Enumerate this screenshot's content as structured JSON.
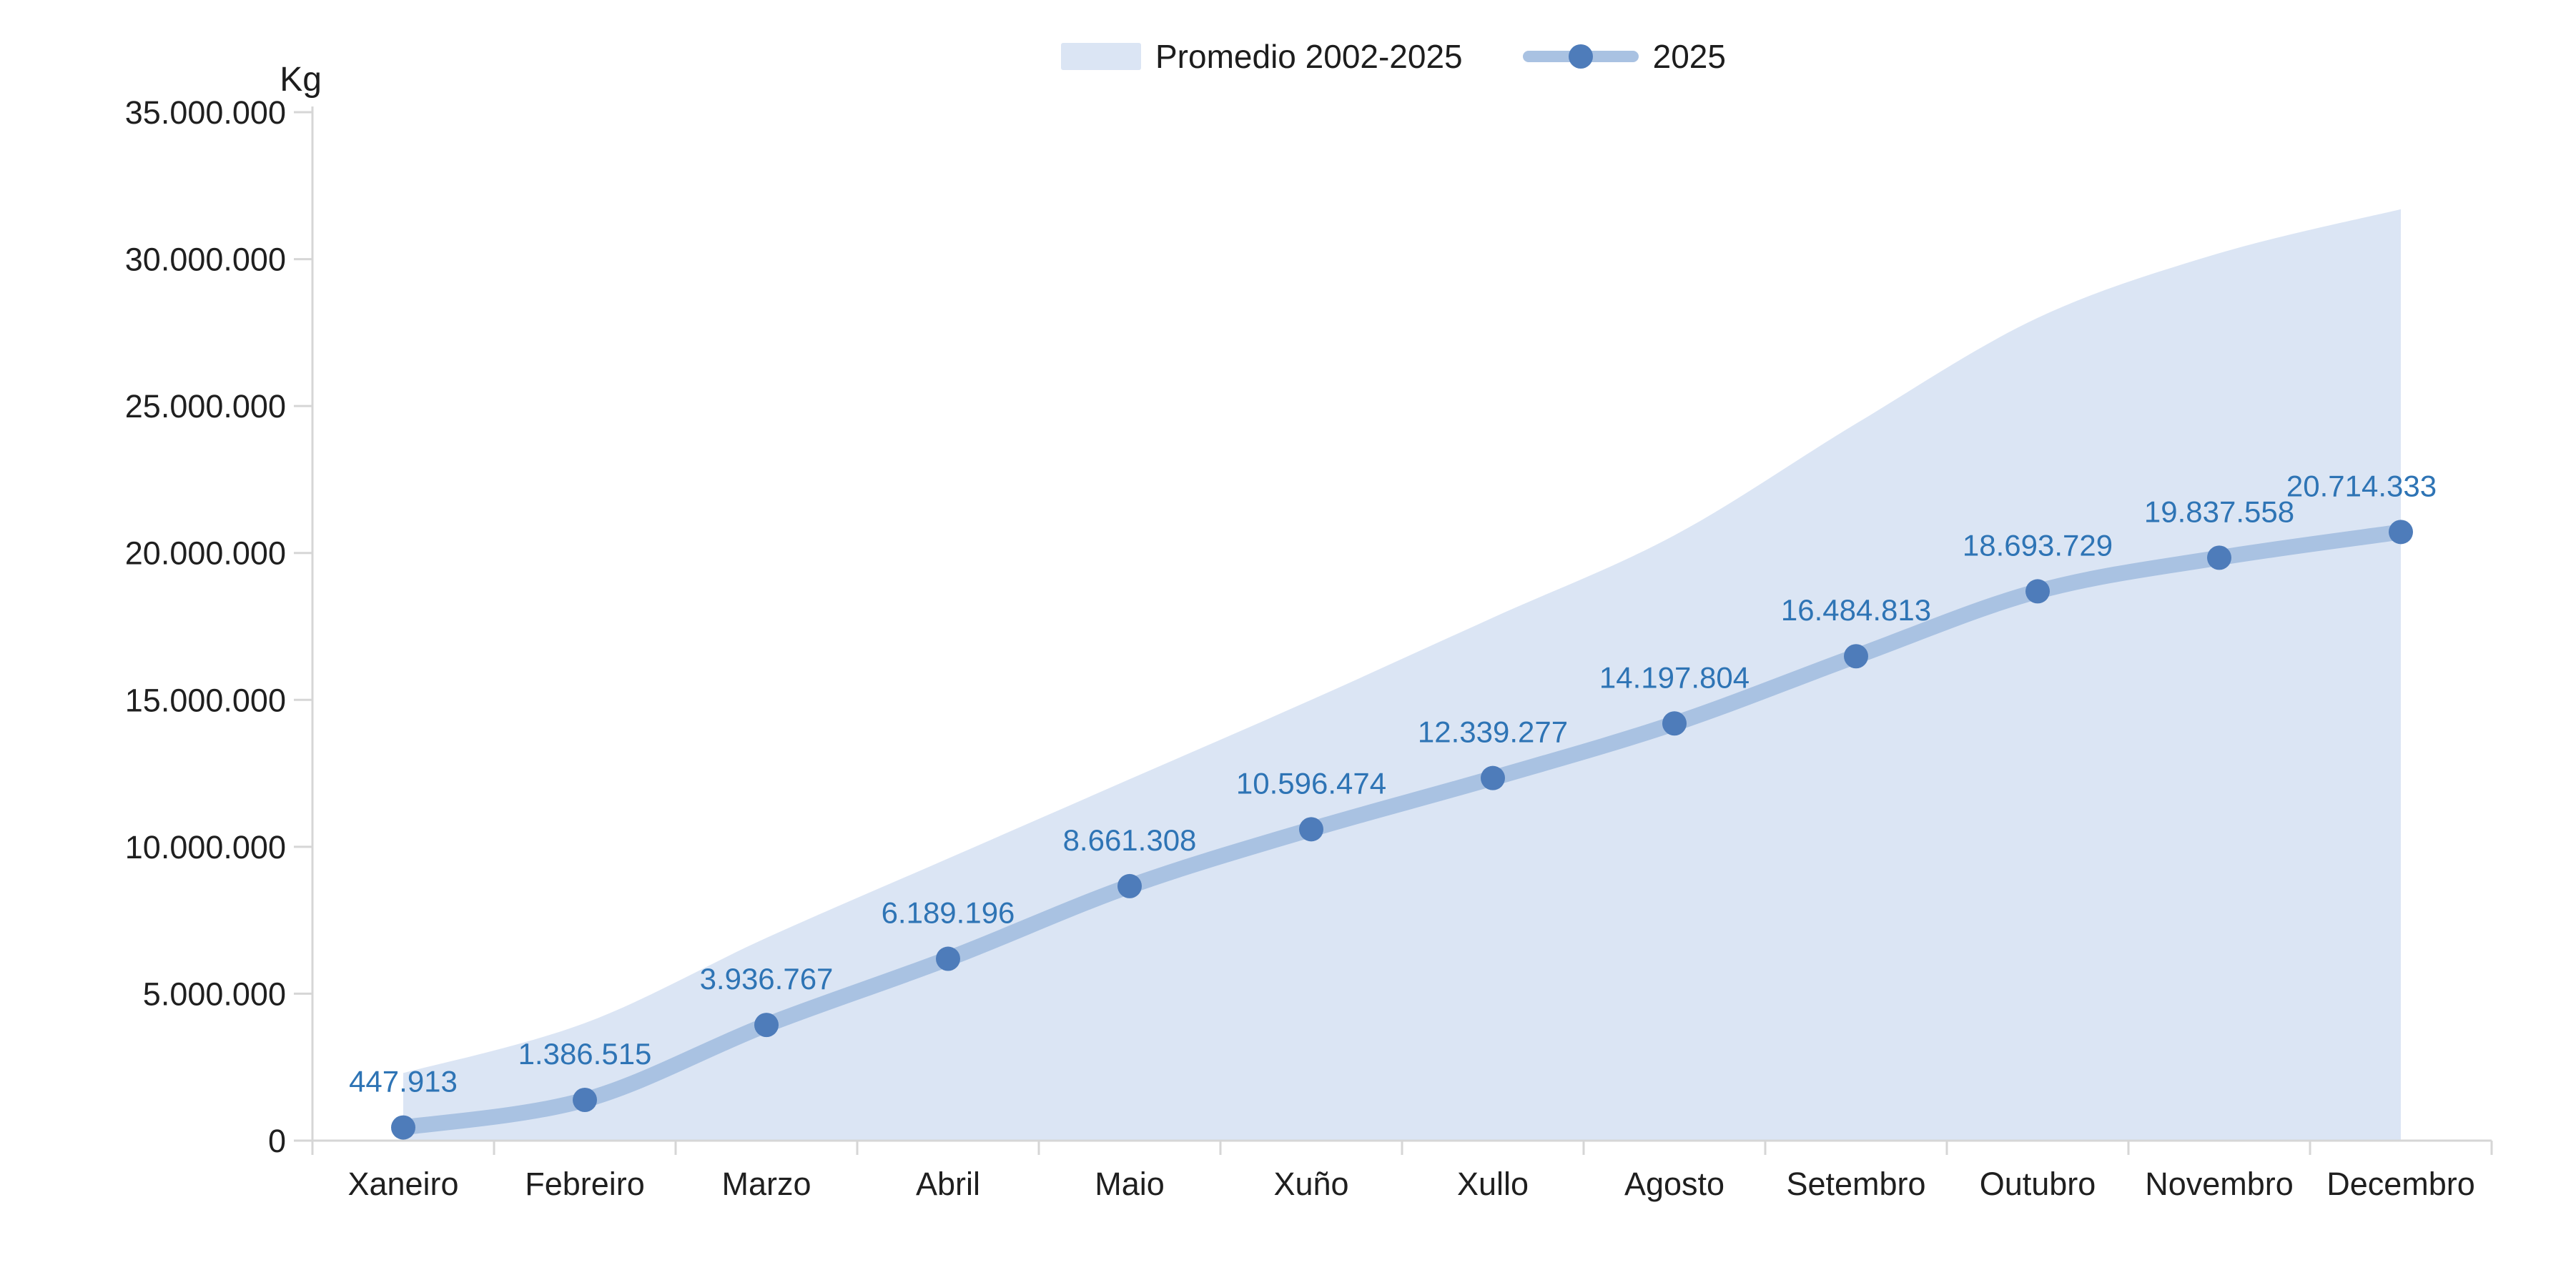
{
  "page": {
    "background": "#ffffff"
  },
  "chart_data": {
    "type": "line",
    "title": "",
    "y_axis_label": "Kg",
    "categories": [
      "Xaneiro",
      "Febreiro",
      "Marzo",
      "Abril",
      "Maio",
      "Xuño",
      "Xullo",
      "Agosto",
      "Setembro",
      "Outubro",
      "Novembro",
      "Decembro"
    ],
    "series": [
      {
        "name": "Promedio 2002-2025",
        "type": "area",
        "color": "#dbe5f4",
        "values": [
          2300000,
          4000000,
          6900000,
          9600000,
          12300000,
          15000000,
          17800000,
          20600000,
          24400000,
          28000000,
          30200000,
          31700000
        ]
      },
      {
        "name": "2025",
        "type": "line",
        "line_color": "#a9c2e2",
        "marker_color": "#4e7cba",
        "label_color": "#2e74b5",
        "values": [
          447913,
          1386515,
          3936767,
          6189196,
          8661308,
          10596474,
          12339277,
          14197804,
          16484813,
          18693729,
          19837558,
          20714333
        ],
        "data_labels": [
          "447.913",
          "1.386.515",
          "3.936.767",
          "6.189.196",
          "8.661.308",
          "10.596.474",
          "12.339.277",
          "14.197.804",
          "16.484.813",
          "18.693.729",
          "19.837.558",
          "20.714.333"
        ]
      }
    ],
    "y_axis": {
      "min": 0,
      "max": 35000000,
      "step": 5000000,
      "tick_labels": [
        "35.000.000",
        "30.000.000",
        "25.000.000",
        "20.000.000",
        "15.000.000",
        "10.000.000",
        "5.000.000",
        "0"
      ]
    },
    "legend_position": "top",
    "grid": false,
    "axis_color": "#d6d6d6",
    "text_color": "#1f1f1f"
  }
}
